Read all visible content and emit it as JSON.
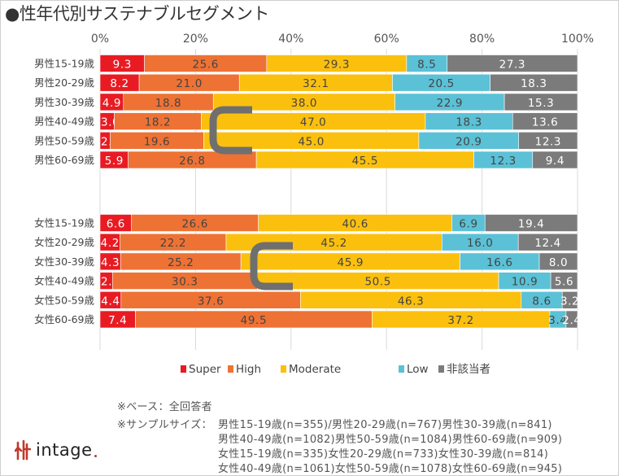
{
  "title": "●性年代別サステナブルセグメント",
  "chart_data": {
    "type": "bar",
    "stacked": true,
    "orientation": "horizontal",
    "title": "●性年代別サステナブルセグメント",
    "xlim": [
      0,
      100
    ],
    "x_ticks": [
      "0%",
      "20%",
      "40%",
      "60%",
      "80%",
      "100%"
    ],
    "grid": true,
    "legend_position": "bottom",
    "colors": {
      "Super": "#e81b23",
      "High": "#ee7234",
      "Moderate": "#fbc00e",
      "Low": "#5bc1d6",
      "非該当者": "#7b7b7b"
    },
    "series_names": [
      "Super",
      "High",
      "Moderate",
      "Low",
      "非該当者"
    ],
    "groups": [
      {
        "name": "男性",
        "categories": [
          "男性15-19歳",
          "男性20-29歳",
          "男性30-39歳",
          "男性40-49歳",
          "男性50-59歳",
          "男性60-69歳"
        ],
        "rows": [
          [
            "9.3",
            "25.6",
            "29.3",
            "8.5",
            "27.3"
          ],
          [
            "8.2",
            "21.0",
            "32.1",
            "20.5",
            "18.3"
          ],
          [
            "4.9",
            "18.8",
            "38.0",
            "22.9",
            "15.3"
          ],
          [
            "3.0",
            "18.2",
            "47.0",
            "18.3",
            "13.6"
          ],
          [
            "2.1",
            "19.6",
            "45.0",
            "20.9",
            "12.3"
          ],
          [
            "5.9",
            "26.8",
            "45.5",
            "12.3",
            "9.4"
          ]
        ]
      },
      {
        "name": "女性",
        "categories": [
          "女性15-19歳",
          "女性20-29歳",
          "女性30-39歳",
          "女性40-49歳",
          "女性50-59歳",
          "女性60-69歳"
        ],
        "rows": [
          [
            "6.6",
            "26.6",
            "40.6",
            "6.9",
            "19.4"
          ],
          [
            "4.2",
            "22.2",
            "45.2",
            "16.0",
            "12.4"
          ],
          [
            "4.3",
            "25.2",
            "45.9",
            "16.6",
            "8.0"
          ],
          [
            "2.6",
            "30.3",
            "50.5",
            "10.9",
            "5.6"
          ],
          [
            "4.4",
            "37.6",
            "46.3",
            "8.6",
            "3.2"
          ],
          [
            "7.4",
            "49.5",
            "37.2",
            "3.4",
            "2.4"
          ]
        ]
      }
    ]
  },
  "notes": {
    "base": "※ベース：全回答者",
    "sample_label": "※サンプルサイズ：",
    "sample_lines": [
      "男性15-19歳(n=355)/男性20-29歳(n=767)男性30-39歳(n=841)",
      "男性40-49歳(n=1082)男性50-59歳(n=1084)男性60-69歳(n=909)",
      "女性15-19歳(n=335)女性20-29歳(n=733)女性30-39歳(n=814)",
      "女性40-49歳(n=1061)女性50-59歳(n=1078)女性60-69歳(n=945)"
    ]
  },
  "logo": {
    "mark": "intage-logo-mark",
    "text": "intage",
    "color": "#c0392b"
  }
}
